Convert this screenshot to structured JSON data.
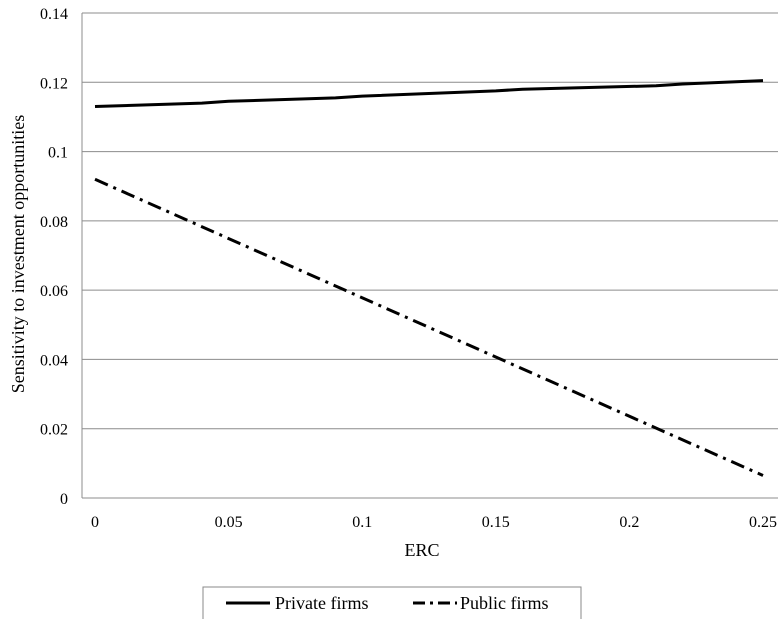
{
  "chart_data": {
    "type": "line",
    "xlabel": "ERC",
    "ylabel": "Sensitivity to investment opportunities",
    "xlim": [
      0,
      0.25
    ],
    "ylim": [
      0,
      0.14
    ],
    "x_ticks": [
      "0",
      "0.05",
      "0.1",
      "0.15",
      "0.2",
      "0.25"
    ],
    "y_ticks": [
      "0",
      "0.02",
      "0.04",
      "0.06",
      "0.08",
      "0.1",
      "0.12",
      "0.14"
    ],
    "grid": "horizontal",
    "legend_position": "bottom",
    "series": [
      {
        "name": "Private firms",
        "style": "solid",
        "color": "#000000",
        "x": [
          0,
          0.04,
          0.05,
          0.09,
          0.1,
          0.15,
          0.16,
          0.21,
          0.22,
          0.25
        ],
        "y": [
          0.113,
          0.114,
          0.1145,
          0.1155,
          0.116,
          0.1175,
          0.118,
          0.119,
          0.1195,
          0.1205
        ]
      },
      {
        "name": "Public firms",
        "style": "dash-dot",
        "color": "#000000",
        "x": [
          0,
          0.25
        ],
        "y": [
          0.092,
          0.0065
        ]
      }
    ]
  }
}
